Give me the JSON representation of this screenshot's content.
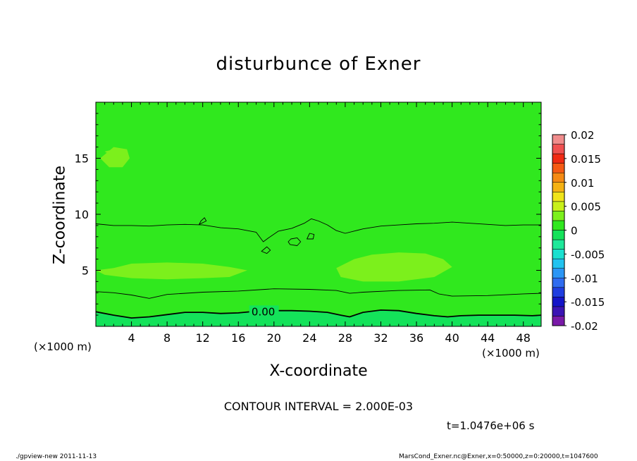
{
  "chart_data": {
    "type": "contour",
    "title": "disturbunce of Exner",
    "xlabel": "X-coordinate",
    "ylabel": "Z-coordinate",
    "x_unit": "(×1000 m)",
    "xlim": [
      0,
      50
    ],
    "ylim": [
      0,
      20
    ],
    "x_ticks": [
      4,
      8,
      12,
      16,
      20,
      24,
      28,
      32,
      36,
      40,
      44,
      48
    ],
    "y_ticks": [
      5,
      10,
      15
    ],
    "contour_interval": "CONTOUR INTERVAL = 2.000E-03",
    "contour_label": "0.00",
    "time_label": "t=1.0476e+06 s",
    "colorbar": {
      "range": [
        -0.02,
        0.02
      ],
      "levels": [
        -0.02,
        -0.018,
        -0.016,
        -0.014,
        -0.012,
        -0.01,
        -0.008,
        -0.006,
        -0.004,
        -0.002,
        0,
        0.002,
        0.004,
        0.006,
        0.008,
        0.01,
        0.012,
        0.014,
        0.016,
        0.018,
        0.02
      ],
      "colors": [
        "#7a1aa8",
        "#3b14b4",
        "#1414c8",
        "#1f3ee0",
        "#2f6cf0",
        "#2b96f5",
        "#21c3f0",
        "#1ae0d0",
        "#1ee89a",
        "#14e25a",
        "#30e81e",
        "#7cf01c",
        "#c8f01a",
        "#f0e41a",
        "#f5b214",
        "#f58a14",
        "#f55a14",
        "#f02a14",
        "#f05050",
        "#f08c8c"
      ],
      "tick_labels": [
        "0.02",
        "0.015",
        "0.01",
        "0.005",
        "0",
        "-0.005",
        "-0.01",
        "-0.015",
        "-0.02"
      ],
      "tick_values": [
        0.02,
        0.015,
        0.01,
        0.005,
        0,
        -0.005,
        -0.01,
        -0.015,
        -0.02
      ]
    },
    "fill_colors": {
      "bottom": "#14e25a",
      "base": "#30e81e",
      "positive": "#7cf01c"
    },
    "contours": [
      {
        "level": 0,
        "labelled": true,
        "label_at": [
          18.8,
          1.3
        ],
        "points": [
          [
            0,
            1.3
          ],
          [
            2,
            1.0
          ],
          [
            4,
            0.75
          ],
          [
            6,
            0.85
          ],
          [
            8,
            1.05
          ],
          [
            10,
            1.25
          ],
          [
            12,
            1.25
          ],
          [
            14,
            1.15
          ],
          [
            16,
            1.2
          ],
          [
            18,
            1.35
          ],
          [
            20,
            1.4
          ],
          [
            22,
            1.4
          ],
          [
            24,
            1.35
          ],
          [
            26,
            1.25
          ],
          [
            27.5,
            1.0
          ],
          [
            28.5,
            0.85
          ],
          [
            30,
            1.25
          ],
          [
            32,
            1.45
          ],
          [
            34,
            1.4
          ],
          [
            36,
            1.15
          ],
          [
            38,
            0.95
          ],
          [
            39.5,
            0.85
          ],
          [
            41,
            0.95
          ],
          [
            43,
            1.0
          ],
          [
            45,
            1.0
          ],
          [
            47,
            1.0
          ],
          [
            49,
            0.95
          ],
          [
            50,
            1.0
          ]
        ]
      },
      {
        "level": 0.002,
        "labelled": false,
        "points": [
          [
            0,
            3.1
          ],
          [
            2,
            3.0
          ],
          [
            4,
            2.8
          ],
          [
            6,
            2.5
          ],
          [
            8,
            2.85
          ],
          [
            12,
            3.05
          ],
          [
            16,
            3.15
          ],
          [
            20,
            3.35
          ],
          [
            24,
            3.3
          ],
          [
            27,
            3.2
          ],
          [
            28.5,
            2.95
          ],
          [
            30,
            3.05
          ],
          [
            34,
            3.2
          ],
          [
            37.5,
            3.25
          ],
          [
            38.5,
            2.9
          ],
          [
            40,
            2.7
          ],
          [
            44,
            2.75
          ],
          [
            48,
            2.9
          ],
          [
            50,
            2.95
          ]
        ]
      },
      {
        "level": 0.002,
        "labelled": false,
        "points": [
          [
            0,
            9.15
          ],
          [
            2,
            9.0
          ],
          [
            4,
            9.0
          ],
          [
            6,
            8.95
          ],
          [
            8,
            9.05
          ],
          [
            10,
            9.1
          ],
          [
            12,
            9.05
          ],
          [
            14,
            8.8
          ],
          [
            16,
            8.7
          ],
          [
            18,
            8.4
          ],
          [
            18.8,
            7.55
          ],
          [
            19.4,
            7.9
          ],
          [
            20.5,
            8.5
          ],
          [
            22,
            8.75
          ],
          [
            23.4,
            9.2
          ],
          [
            24.2,
            9.6
          ],
          [
            25,
            9.4
          ],
          [
            26,
            9.05
          ],
          [
            27,
            8.55
          ],
          [
            28,
            8.3
          ],
          [
            30,
            8.7
          ],
          [
            32,
            8.95
          ],
          [
            34,
            9.05
          ],
          [
            36,
            9.15
          ],
          [
            38,
            9.2
          ],
          [
            40,
            9.3
          ],
          [
            42,
            9.2
          ],
          [
            44,
            9.1
          ],
          [
            46,
            9.0
          ],
          [
            48,
            9.05
          ],
          [
            50,
            9.05
          ]
        ]
      },
      {
        "level": 0.002,
        "labelled": false,
        "closed": true,
        "points": [
          [
            21.8,
            7.3
          ],
          [
            22.6,
            7.2
          ],
          [
            23.0,
            7.55
          ],
          [
            22.6,
            7.9
          ],
          [
            21.9,
            7.8
          ],
          [
            21.6,
            7.55
          ]
        ]
      },
      {
        "level": 0.002,
        "labelled": false,
        "closed": true,
        "points": [
          [
            18.6,
            6.7
          ],
          [
            19.2,
            6.5
          ],
          [
            19.6,
            6.8
          ],
          [
            19.2,
            7.1
          ]
        ]
      },
      {
        "level": 0.002,
        "labelled": false,
        "closed": true,
        "points": [
          [
            23.7,
            7.8
          ],
          [
            24.4,
            7.8
          ],
          [
            24.5,
            8.2
          ],
          [
            24.0,
            8.3
          ]
        ]
      },
      {
        "level": 0.002,
        "labelled": false,
        "closed": true,
        "points": [
          [
            11.6,
            9.1
          ],
          [
            12.4,
            9.4
          ],
          [
            12.2,
            9.7
          ],
          [
            11.8,
            9.4
          ]
        ]
      }
    ],
    "positive_regions": [
      {
        "points": [
          [
            0,
            5.0
          ],
          [
            2,
            5.2
          ],
          [
            4,
            5.6
          ],
          [
            8,
            5.7
          ],
          [
            12,
            5.6
          ],
          [
            15,
            5.3
          ],
          [
            17,
            5.0
          ],
          [
            15,
            4.4
          ],
          [
            12,
            4.3
          ],
          [
            8,
            4.2
          ],
          [
            4,
            4.3
          ],
          [
            1,
            4.6
          ]
        ]
      },
      {
        "points": [
          [
            27,
            5.2
          ],
          [
            29,
            6.0
          ],
          [
            31,
            6.4
          ],
          [
            34,
            6.6
          ],
          [
            37,
            6.5
          ],
          [
            39,
            6.0
          ],
          [
            40,
            5.3
          ],
          [
            38,
            4.4
          ],
          [
            34,
            4.0
          ],
          [
            30,
            4.0
          ],
          [
            27.5,
            4.4
          ]
        ]
      },
      {
        "points": [
          [
            0.5,
            15.0
          ],
          [
            2,
            16.0
          ],
          [
            3.5,
            15.8
          ],
          [
            3.8,
            15.0
          ],
          [
            3,
            14.2
          ],
          [
            1.5,
            14.2
          ]
        ]
      },
      {
        "points": [
          [
            1,
            15.6
          ],
          [
            2,
            15.1
          ],
          [
            3,
            15.3
          ],
          [
            2.5,
            15.9
          ]
        ]
      }
    ]
  },
  "footer": {
    "left": "./gpview-new   2011-11-13",
    "right": "MarsCond_Exner.nc@Exner,x=0:50000,z=0:20000,t=1047600"
  }
}
